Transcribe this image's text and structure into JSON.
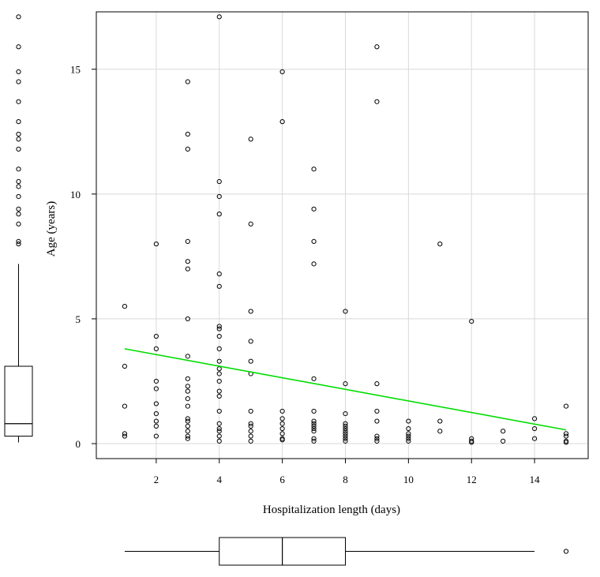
{
  "chart_data": {
    "type": "scatter",
    "title": "",
    "xlabel": "Hospitalization length (days)",
    "ylabel": "Age (years)",
    "xlim": [
      0.1,
      15.7
    ],
    "ylim": [
      -0.6,
      17.3
    ],
    "x_ticks": [
      2,
      4,
      6,
      8,
      10,
      12,
      14
    ],
    "y_ticks": [
      0,
      5,
      10,
      15
    ],
    "grid": true,
    "trendline": {
      "x": [
        1,
        15
      ],
      "y": [
        3.8,
        0.55
      ],
      "color": "#00dd00"
    },
    "points": [
      [
        1,
        5.5
      ],
      [
        1,
        3.1
      ],
      [
        1,
        1.5
      ],
      [
        1,
        0.4
      ],
      [
        1,
        0.3
      ],
      [
        2,
        8.0
      ],
      [
        2,
        4.3
      ],
      [
        2,
        3.8
      ],
      [
        2,
        2.5
      ],
      [
        2,
        2.2
      ],
      [
        2,
        1.6
      ],
      [
        2,
        1.2
      ],
      [
        2,
        0.9
      ],
      [
        2,
        0.7
      ],
      [
        2,
        0.3
      ],
      [
        3,
        14.5
      ],
      [
        3,
        12.4
      ],
      [
        3,
        11.8
      ],
      [
        3,
        8.1
      ],
      [
        3,
        7.3
      ],
      [
        3,
        7.0
      ],
      [
        3,
        5.0
      ],
      [
        3,
        3.5
      ],
      [
        3,
        2.6
      ],
      [
        3,
        2.3
      ],
      [
        3,
        2.1
      ],
      [
        3,
        1.8
      ],
      [
        3,
        1.5
      ],
      [
        3,
        1.0
      ],
      [
        3,
        0.9
      ],
      [
        3,
        0.7
      ],
      [
        3,
        0.5
      ],
      [
        3,
        0.3
      ],
      [
        3,
        0.2
      ],
      [
        4,
        17.1
      ],
      [
        4,
        10.5
      ],
      [
        4,
        9.9
      ],
      [
        4,
        9.2
      ],
      [
        4,
        6.8
      ],
      [
        4,
        6.3
      ],
      [
        4,
        4.7
      ],
      [
        4,
        4.6
      ],
      [
        4,
        4.3
      ],
      [
        4,
        3.8
      ],
      [
        4,
        3.3
      ],
      [
        4,
        3.0
      ],
      [
        4,
        2.8
      ],
      [
        4,
        2.5
      ],
      [
        4,
        2.1
      ],
      [
        4,
        1.9
      ],
      [
        4,
        1.3
      ],
      [
        4,
        0.8
      ],
      [
        4,
        0.6
      ],
      [
        4,
        0.5
      ],
      [
        4,
        0.3
      ],
      [
        4,
        0.1
      ],
      [
        5,
        12.2
      ],
      [
        5,
        8.8
      ],
      [
        5,
        5.3
      ],
      [
        5,
        4.1
      ],
      [
        5,
        3.3
      ],
      [
        5,
        2.8
      ],
      [
        5,
        1.3
      ],
      [
        5,
        0.8
      ],
      [
        5,
        0.7
      ],
      [
        5,
        0.5
      ],
      [
        5,
        0.3
      ],
      [
        5,
        0.1
      ],
      [
        6,
        14.9
      ],
      [
        6,
        12.9
      ],
      [
        6,
        1.3
      ],
      [
        6,
        1.0
      ],
      [
        6,
        0.8
      ],
      [
        6,
        0.6
      ],
      [
        6,
        0.4
      ],
      [
        6,
        0.2
      ],
      [
        6,
        0.15
      ],
      [
        7,
        11.0
      ],
      [
        7,
        9.4
      ],
      [
        7,
        8.1
      ],
      [
        7,
        7.2
      ],
      [
        7,
        2.6
      ],
      [
        7,
        1.3
      ],
      [
        7,
        0.9
      ],
      [
        7,
        0.8
      ],
      [
        7,
        0.7
      ],
      [
        7,
        0.6
      ],
      [
        7,
        0.5
      ],
      [
        7,
        0.2
      ],
      [
        7,
        0.1
      ],
      [
        8,
        5.3
      ],
      [
        8,
        2.4
      ],
      [
        8,
        1.2
      ],
      [
        8,
        0.8
      ],
      [
        8,
        0.7
      ],
      [
        8,
        0.6
      ],
      [
        8,
        0.5
      ],
      [
        8,
        0.4
      ],
      [
        8,
        0.3
      ],
      [
        8,
        0.2
      ],
      [
        8,
        0.1
      ],
      [
        9,
        15.9
      ],
      [
        9,
        13.7
      ],
      [
        9,
        2.4
      ],
      [
        9,
        1.3
      ],
      [
        9,
        0.9
      ],
      [
        9,
        0.3
      ],
      [
        9,
        0.2
      ],
      [
        9,
        0.1
      ],
      [
        10,
        0.9
      ],
      [
        10,
        0.6
      ],
      [
        10,
        0.4
      ],
      [
        10,
        0.3
      ],
      [
        10,
        0.2
      ],
      [
        10,
        0.1
      ],
      [
        11,
        8.0
      ],
      [
        11,
        0.9
      ],
      [
        11,
        0.5
      ],
      [
        12,
        4.9
      ],
      [
        12,
        0.2
      ],
      [
        12,
        0.1
      ],
      [
        12,
        0.05
      ],
      [
        13,
        0.5
      ],
      [
        13,
        0.1
      ],
      [
        14,
        1.0
      ],
      [
        14,
        0.6
      ],
      [
        14,
        0.2
      ],
      [
        15,
        1.5
      ],
      [
        15,
        0.4
      ],
      [
        15,
        0.3
      ],
      [
        15,
        0.1
      ],
      [
        15,
        0.05
      ]
    ],
    "y_boxplot": {
      "whisker_low": 0.05,
      "q1": 0.3,
      "median": 0.8,
      "q3": 3.1,
      "whisker_high": 7.2,
      "outliers": [
        8.0,
        8.1,
        8.8,
        9.2,
        9.4,
        9.9,
        10.3,
        10.5,
        11.0,
        11.8,
        12.2,
        12.4,
        12.9,
        13.7,
        14.5,
        14.9,
        15.9,
        17.1
      ]
    },
    "x_boxplot": {
      "whisker_low": 1,
      "q1": 4,
      "median": 6,
      "q3": 8,
      "whisker_high": 14,
      "outliers": [
        15
      ]
    }
  }
}
